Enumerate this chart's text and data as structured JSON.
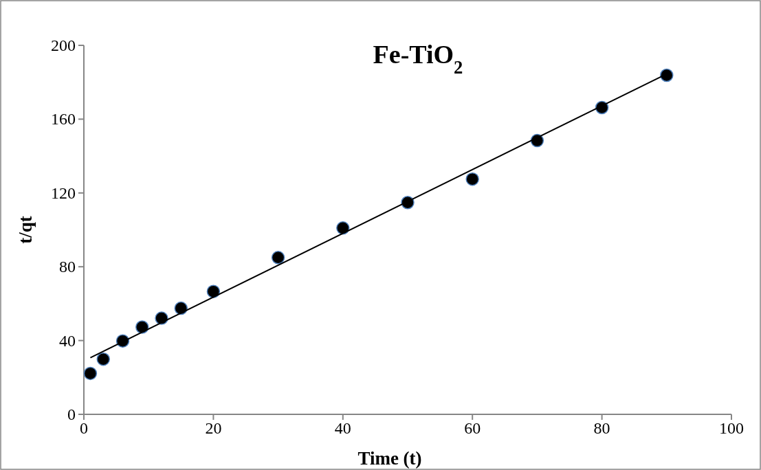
{
  "chart_data": {
    "type": "scatter",
    "title": "Fe-TiO$_{2}$",
    "xlabel": "Time (t)",
    "ylabel": "t/qt",
    "xlim": [
      0,
      100
    ],
    "xticks": [
      0,
      20,
      40,
      60,
      80,
      100
    ],
    "ylim": [
      0,
      200
    ],
    "yticks": [
      0,
      40,
      80,
      120,
      160,
      200
    ],
    "grid": false,
    "series": [
      {
        "color": "#000000",
        "marker": "circle",
        "x": [
          1,
          3,
          6,
          9,
          12,
          15,
          20,
          30,
          40,
          50,
          60,
          70,
          80,
          90
        ],
        "values": [
          22.2,
          29.9,
          39.8,
          47.3,
          52.1,
          57.5,
          66.6,
          85,
          101,
          114.8,
          127.5,
          148.4,
          166.3,
          183.8
        ]
      },
      {
        "type": "line",
        "color": "#000000",
        "marker": "none",
        "x": [
          1,
          90
        ],
        "values": [
          30.7,
          184.5
        ]
      }
    ]
  }
}
